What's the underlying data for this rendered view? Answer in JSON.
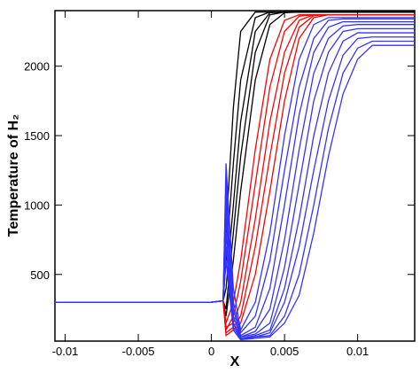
{
  "chart_data": {
    "type": "line",
    "x_label": "X",
    "y_label": "Temperature of H₂",
    "x": [
      -0.0107,
      0,
      0.0008,
      0.001,
      0.0015,
      0.002,
      0.003,
      0.004,
      0.005,
      0.006,
      0.007,
      0.008,
      0.009,
      0.01,
      0.011,
      0.012,
      0.0139
    ],
    "xlim": [
      -0.0107,
      0.0139
    ],
    "ylim": [
      20,
      2400
    ],
    "xticks": [
      -0.01,
      -0.005,
      0,
      0.005,
      0.01
    ],
    "yticks": [
      500,
      1000,
      1500,
      2000
    ],
    "series": [
      {
        "color": "#000000",
        "values": [
          300,
          300,
          310,
          800,
          1700,
          2250,
          2390,
          2390,
          2390,
          2390,
          2390,
          2390,
          2390,
          2390,
          2390,
          2390,
          2390
        ]
      },
      {
        "color": "#000000",
        "values": [
          300,
          300,
          310,
          600,
          1300,
          1900,
          2350,
          2390,
          2390,
          2390,
          2390,
          2390,
          2390,
          2390,
          2390,
          2390,
          2390
        ]
      },
      {
        "color": "#000000",
        "values": [
          300,
          300,
          310,
          400,
          1000,
          1600,
          2250,
          2385,
          2390,
          2390,
          2390,
          2390,
          2390,
          2390,
          2390,
          2390,
          2390
        ]
      },
      {
        "color": "#000000",
        "values": [
          300,
          300,
          310,
          250,
          800,
          1350,
          2100,
          2370,
          2390,
          2390,
          2390,
          2390,
          2390,
          2390,
          2390,
          2390,
          2390
        ]
      },
      {
        "color": "#000000",
        "values": [
          300,
          300,
          310,
          200,
          600,
          1100,
          1900,
          2300,
          2385,
          2390,
          2390,
          2390,
          2390,
          2390,
          2390,
          2390,
          2390
        ]
      },
      {
        "color": "#ff0000",
        "values": [
          300,
          300,
          310,
          150,
          300,
          600,
          1400,
          2050,
          2330,
          2370,
          2370,
          2370,
          2370,
          2370,
          2370,
          2370,
          2370
        ]
      },
      {
        "color": "#ff0000",
        "values": [
          300,
          300,
          310,
          100,
          200,
          450,
          1150,
          1850,
          2250,
          2360,
          2370,
          2370,
          2370,
          2370,
          2370,
          2370,
          2370
        ]
      },
      {
        "color": "#ff0000",
        "values": [
          300,
          300,
          310,
          120,
          150,
          300,
          900,
          1600,
          2100,
          2330,
          2370,
          2370,
          2370,
          2370,
          2370,
          2370,
          2370
        ]
      },
      {
        "color": "#ff0000",
        "values": [
          300,
          300,
          310,
          80,
          120,
          200,
          700,
          1350,
          1950,
          2280,
          2365,
          2370,
          2370,
          2370,
          2370,
          2370,
          2370
        ]
      },
      {
        "color": "#ff0000",
        "values": [
          300,
          300,
          310,
          60,
          100,
          150,
          500,
          1100,
          1750,
          2200,
          2350,
          2370,
          2370,
          2370,
          2370,
          2370,
          2370
        ]
      },
      {
        "color": "#3333ff",
        "values": [
          300,
          300,
          310,
          1300,
          400,
          100,
          300,
          800,
          1500,
          2050,
          2300,
          2350,
          2350,
          2350,
          2350,
          2350,
          2350
        ]
      },
      {
        "color": "#3333ff",
        "values": [
          300,
          300,
          310,
          1100,
          300,
          80,
          200,
          600,
          1250,
          1850,
          2200,
          2330,
          2340,
          2340,
          2340,
          2340,
          2340
        ]
      },
      {
        "color": "#3333ff",
        "values": [
          300,
          300,
          310,
          900,
          250,
          60,
          120,
          400,
          1000,
          1650,
          2100,
          2280,
          2320,
          2320,
          2320,
          2320,
          2320
        ]
      },
      {
        "color": "#3333ff",
        "values": [
          300,
          300,
          310,
          1000,
          200,
          50,
          90,
          250,
          750,
          1400,
          1950,
          2200,
          2290,
          2300,
          2300,
          2300,
          2300
        ]
      },
      {
        "color": "#3333ff",
        "values": [
          300,
          300,
          310,
          800,
          150,
          50,
          70,
          150,
          550,
          1150,
          1750,
          2100,
          2250,
          2270,
          2270,
          2270,
          2270
        ]
      },
      {
        "color": "#3333ff",
        "values": [
          300,
          300,
          310,
          1200,
          150,
          40,
          60,
          100,
          400,
          900,
          1500,
          1950,
          2180,
          2240,
          2240,
          2240,
          2240
        ]
      },
      {
        "color": "#3333ff",
        "values": [
          300,
          300,
          310,
          700,
          120,
          40,
          50,
          80,
          300,
          700,
          1250,
          1750,
          2080,
          2200,
          2210,
          2210,
          2210
        ]
      },
      {
        "color": "#3333ff",
        "values": [
          300,
          300,
          310,
          1100,
          100,
          30,
          50,
          60,
          200,
          500,
          1000,
          1550,
          1950,
          2130,
          2180,
          2180,
          2180
        ]
      },
      {
        "color": "#3333ff",
        "values": [
          300,
          300,
          310,
          600,
          100,
          30,
          40,
          50,
          150,
          350,
          800,
          1350,
          1800,
          2050,
          2150,
          2150,
          2150
        ]
      }
    ]
  }
}
